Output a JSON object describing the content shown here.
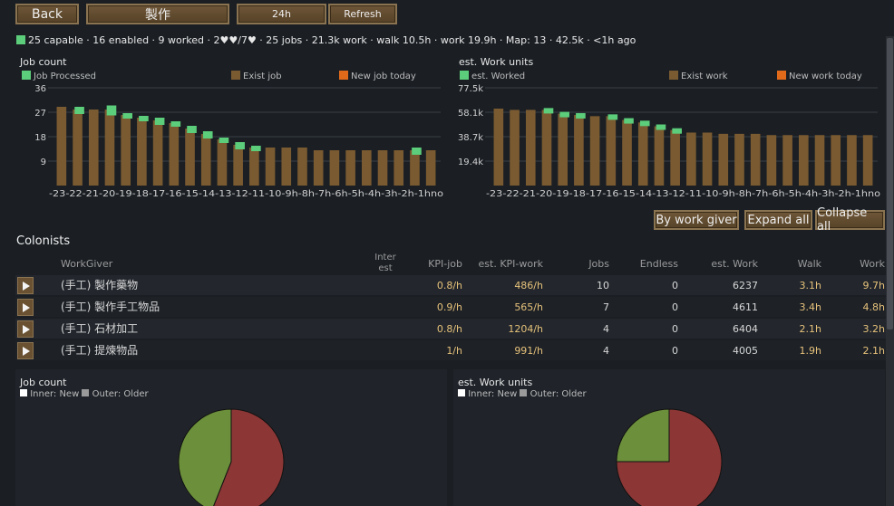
{
  "toolbar": {
    "back_label": "Back",
    "title_label": "製作",
    "period_label": "24h",
    "refresh_label": "Refresh"
  },
  "status": {
    "text": "25 capable · 16 enabled · 9 worked · 2♥♥/7♥ · 25 jobs · 21.3k work · walk 10.5h · work 19.9h · Map: 13 · 42.5k · <1h ago",
    "swatch_color": "#5ccd7a"
  },
  "job_chart": {
    "title": "Job count",
    "legend": [
      "Job Processed",
      "Exist job",
      "New job today"
    ],
    "colors": {
      "processed": "#5ccd7a",
      "exist": "#7a5a30",
      "new": "#e06a1a"
    }
  },
  "work_chart": {
    "title": "est. Work units",
    "legend": [
      "est. Worked",
      "Exist work",
      "New work today"
    ]
  },
  "chart_data": [
    {
      "type": "bar",
      "title": "Job count",
      "categories": [
        "-23",
        "-22",
        "-21",
        "-20",
        "-19",
        "-18",
        "-17",
        "-16",
        "-15",
        "-14",
        "-13",
        "-12",
        "-11",
        "-10",
        "-9h",
        "-8h",
        "-7h",
        "-6h",
        "-5h",
        "-4h",
        "-3h",
        "-2h",
        "-1h",
        "no"
      ],
      "y_ticks": [
        "9",
        "18",
        "27",
        "36"
      ],
      "ylim": [
        0,
        36
      ],
      "series": [
        {
          "name": "Exist job",
          "values": [
            29,
            28,
            28,
            28,
            26,
            25,
            24,
            23,
            21,
            19,
            17,
            15,
            14,
            14,
            14,
            14,
            13,
            13,
            13,
            13,
            13,
            13,
            13,
            13
          ]
        },
        {
          "name": "Job Processed",
          "values": [
            0,
            2,
            0,
            3,
            1,
            1,
            2,
            1,
            2,
            2,
            1,
            2,
            1,
            0,
            0,
            0,
            0,
            0,
            0,
            0,
            0,
            0,
            2,
            0
          ]
        }
      ]
    },
    {
      "type": "bar",
      "title": "est. Work units",
      "categories": [
        "-23",
        "-22",
        "-21",
        "-20",
        "-19",
        "-18",
        "-17",
        "-16",
        "-15",
        "-14",
        "-13",
        "-12",
        "-11",
        "-10",
        "-9h",
        "-8h",
        "-7h",
        "-6h",
        "-5h",
        "-4h",
        "-3h",
        "-2h",
        "-1h",
        "no"
      ],
      "y_ticks": [
        "19.4k",
        "38.7k",
        "58.1k",
        "77.5k"
      ],
      "ylim": [
        0,
        77.5
      ],
      "series": [
        {
          "name": "Exist work",
          "values": [
            61,
            60,
            60,
            60,
            57,
            56,
            55,
            55,
            52,
            50,
            47,
            44,
            42,
            42,
            41,
            41,
            41,
            40,
            40,
            40,
            40,
            40,
            40,
            40
          ]
        },
        {
          "name": "est. Worked",
          "values": [
            0,
            0,
            0,
            2,
            1,
            1,
            0,
            1,
            2,
            1,
            1,
            1,
            0,
            0,
            0,
            0,
            0,
            0,
            0,
            0,
            0,
            0,
            0,
            0
          ]
        }
      ]
    },
    {
      "type": "pie",
      "title": "Job count",
      "categories": [
        "Inner: New",
        "Outer: Older"
      ],
      "slices": [
        {
          "label": "green",
          "value": 0.44,
          "color": "#6b8f3a"
        },
        {
          "label": "red",
          "value": 0.56,
          "color": "#8c3636"
        }
      ]
    },
    {
      "type": "pie",
      "title": "est. Work units",
      "categories": [
        "Inner: New",
        "Outer: Older"
      ],
      "slices": [
        {
          "label": "green",
          "value": 0.25,
          "color": "#6b8f3a"
        },
        {
          "label": "red",
          "value": 0.75,
          "color": "#8c3636"
        }
      ]
    }
  ],
  "actions": {
    "by_giver": "By work giver",
    "expand_all": "Expand all",
    "collapse_all": "Collapse all"
  },
  "colonists": {
    "label": "Colonists",
    "headers": {
      "workgiver": "WorkGiver",
      "interest": "Inter\nest",
      "kpi_job": "KPI-job",
      "kpi_work": "est. KPI-work",
      "jobs": "Jobs",
      "endless": "Endless",
      "est_work": "est. Work",
      "walk": "Walk",
      "work": "Work"
    },
    "rows": [
      {
        "name": "(手工) 製作藥物",
        "kpi_job": "0.8/h",
        "kpi_work": "486/h",
        "jobs": "10",
        "endless": "0",
        "est_work": "6237",
        "walk": "3.1h",
        "work": "9.7h"
      },
      {
        "name": "(手工) 製作手工物品",
        "kpi_job": "0.9/h",
        "kpi_work": "565/h",
        "jobs": "7",
        "endless": "0",
        "est_work": "4611",
        "walk": "3.4h",
        "work": "4.8h"
      },
      {
        "name": "(手工) 石材加工",
        "kpi_job": "0.8/h",
        "kpi_work": "1204/h",
        "jobs": "4",
        "endless": "0",
        "est_work": "6404",
        "walk": "2.1h",
        "work": "3.2h"
      },
      {
        "name": "(手工) 提煉物品",
        "kpi_job": "1/h",
        "kpi_work": "991/h",
        "jobs": "4",
        "endless": "0",
        "est_work": "4005",
        "walk": "1.9h",
        "work": "2.1h"
      }
    ]
  },
  "pies": {
    "job": {
      "title": "Job count",
      "inner": "Inner: New",
      "outer": "Outer: Older"
    },
    "work": {
      "title": "est. Work units",
      "inner": "Inner: New",
      "outer": "Outer: Older"
    }
  }
}
